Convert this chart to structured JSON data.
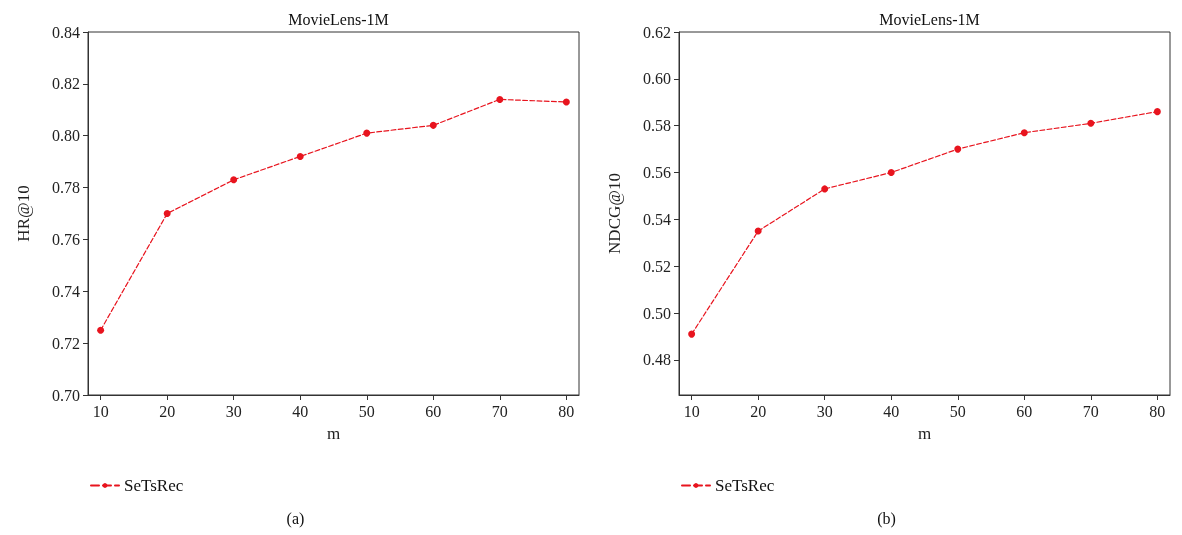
{
  "chart_data": [
    {
      "type": "line",
      "title": "MovieLens-1M",
      "xlabel": "m",
      "ylabel": "HR@10",
      "annotations": [
        "(a)"
      ],
      "x": [
        10,
        20,
        30,
        40,
        50,
        60,
        70,
        80
      ],
      "series": [
        {
          "name": "SeTsRec",
          "color": "#e8141e",
          "values": [
            0.725,
            0.77,
            0.783,
            0.792,
            0.801,
            0.804,
            0.814,
            0.813
          ]
        }
      ],
      "xlim": [
        8.1,
        81.9
      ],
      "xticks": [
        10,
        20,
        30,
        40,
        50,
        60,
        70,
        80
      ],
      "ylim": [
        0.7,
        0.84
      ],
      "yticks": [
        {
          "value": 0.7,
          "label": "0.70"
        },
        {
          "value": 0.72,
          "label": "0.72"
        },
        {
          "value": 0.74,
          "label": "0.74"
        },
        {
          "value": 0.76,
          "label": "0.76"
        },
        {
          "value": 0.78,
          "label": "0.78"
        },
        {
          "value": 0.8,
          "label": "0.80"
        },
        {
          "value": 0.82,
          "label": "0.82"
        },
        {
          "value": 0.84,
          "label": "0.84"
        }
      ],
      "legend": "bottom left",
      "marker": "circle",
      "line_style": "dashed"
    },
    {
      "type": "line",
      "title": "MovieLens-1M",
      "xlabel": "m",
      "ylabel": "NDCG@10",
      "annotations": [
        "(b)"
      ],
      "x": [
        10,
        20,
        30,
        40,
        50,
        60,
        70,
        80
      ],
      "series": [
        {
          "name": "SeTsRec",
          "color": "#e8141e",
          "values": [
            0.491,
            0.535,
            0.553,
            0.56,
            0.57,
            0.577,
            0.581,
            0.586
          ]
        }
      ],
      "xlim": [
        8.1,
        81.9
      ],
      "xticks": [
        10,
        20,
        30,
        40,
        50,
        60,
        70,
        80
      ],
      "ylim": [
        0.465,
        0.62
      ],
      "yticks": [
        {
          "value": 0.48,
          "label": "0.48"
        },
        {
          "value": 0.5,
          "label": "0.50"
        },
        {
          "value": 0.52,
          "label": "0.52"
        },
        {
          "value": 0.54,
          "label": "0.54"
        },
        {
          "value": 0.56,
          "label": "0.56"
        },
        {
          "value": 0.58,
          "label": "0.58"
        },
        {
          "value": 0.6,
          "label": "0.60"
        },
        {
          "value": 0.62,
          "label": "0.62"
        }
      ],
      "legend": "bottom left",
      "marker": "circle",
      "line_style": "dashed"
    }
  ]
}
